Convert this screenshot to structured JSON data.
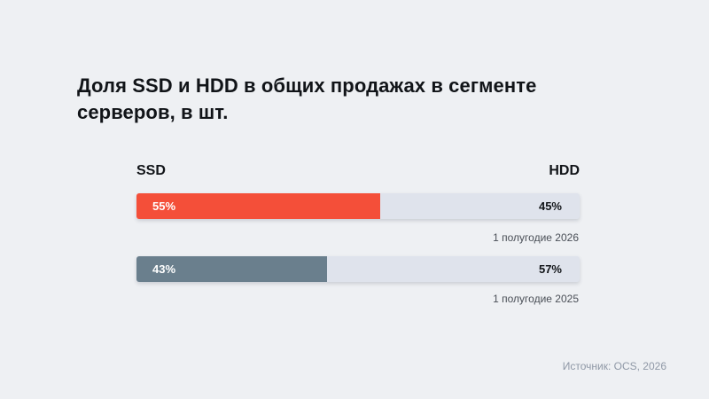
{
  "title": "Доля SSD и HDD в общих продажах в сегменте серверов, в шт.",
  "source": "Источник: OCS, 2026",
  "colors": {
    "background": "#eef0f3",
    "track": "#dfe3ec",
    "ssd_2026": "#f44f39",
    "ssd_2025": "#6a7f8d"
  },
  "chart_data": {
    "type": "bar",
    "orientation": "horizontal",
    "stacked": true,
    "legend": {
      "left": "SSD",
      "right": "HDD"
    },
    "categories": [
      "1 полугодие 2026",
      "1 полугодие 2025"
    ],
    "series": [
      {
        "name": "SSD",
        "values": [
          55,
          43
        ],
        "labels": [
          "55%",
          "43%"
        ]
      },
      {
        "name": "HDD",
        "values": [
          45,
          57
        ],
        "labels": [
          "45%",
          "57%"
        ]
      }
    ],
    "xlim": [
      0,
      100
    ],
    "unit": "%",
    "title": "Доля SSD и HDD в общих продажах в сегменте серверов, в шт."
  }
}
